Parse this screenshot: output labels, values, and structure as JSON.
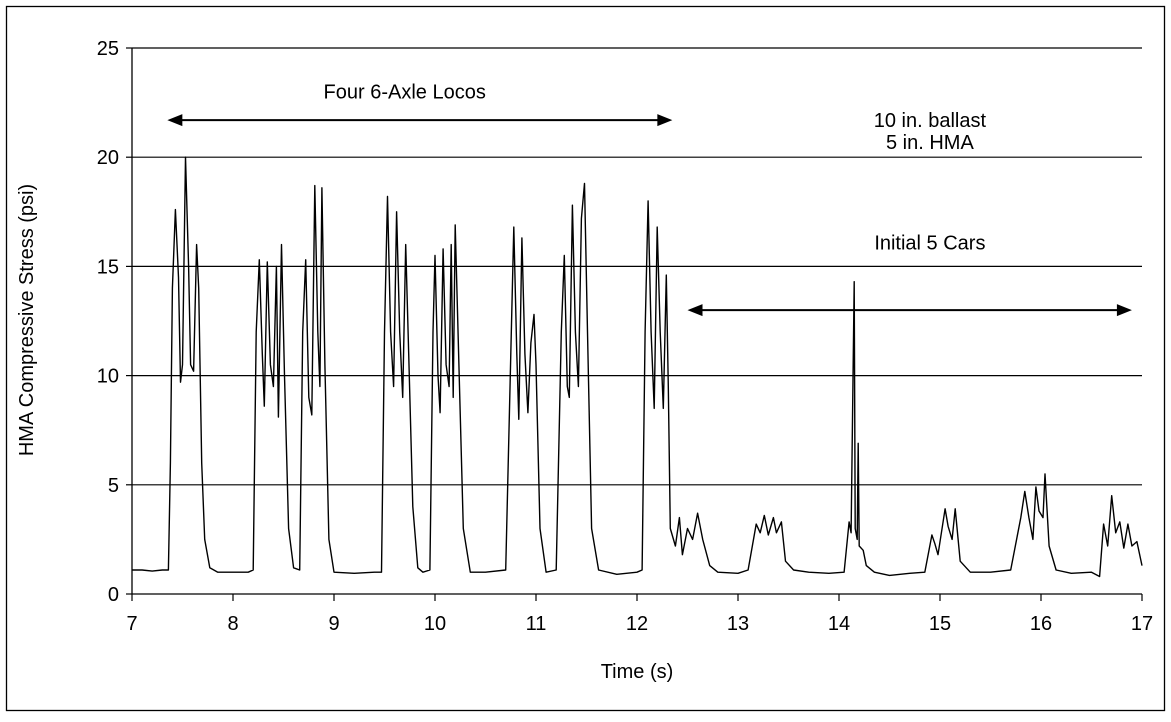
{
  "chart_data": {
    "type": "line",
    "title": "",
    "xlabel": "Time (s)",
    "ylabel": "HMA Compressive Stress (psi)",
    "xlim": [
      7,
      17
    ],
    "ylim": [
      0,
      25
    ],
    "x_ticks": [
      7,
      8,
      9,
      10,
      11,
      12,
      13,
      14,
      15,
      16,
      17
    ],
    "y_ticks": [
      0,
      5,
      10,
      15,
      20,
      25
    ],
    "grid": "horizontal",
    "legend": "none",
    "line_color": "#000000",
    "series": [
      {
        "points": [
          [
            7.0,
            1.1
          ],
          [
            7.1,
            1.1
          ],
          [
            7.2,
            1.05
          ],
          [
            7.3,
            1.1
          ],
          [
            7.36,
            1.1
          ],
          [
            7.38,
            6
          ],
          [
            7.4,
            14
          ],
          [
            7.43,
            17.6
          ],
          [
            7.46,
            14.5
          ],
          [
            7.48,
            9.7
          ],
          [
            7.5,
            10.5
          ],
          [
            7.53,
            20.0
          ],
          [
            7.56,
            15
          ],
          [
            7.58,
            10.5
          ],
          [
            7.61,
            10.2
          ],
          [
            7.64,
            16.0
          ],
          [
            7.66,
            14
          ],
          [
            7.69,
            6
          ],
          [
            7.72,
            2.5
          ],
          [
            7.77,
            1.2
          ],
          [
            7.85,
            1.0
          ],
          [
            8.0,
            1.0
          ],
          [
            8.15,
            1.0
          ],
          [
            8.2,
            1.1
          ],
          [
            8.23,
            12
          ],
          [
            8.26,
            15.3
          ],
          [
            8.29,
            11
          ],
          [
            8.31,
            8.6
          ],
          [
            8.34,
            15.2
          ],
          [
            8.37,
            10.5
          ],
          [
            8.4,
            9.5
          ],
          [
            8.43,
            15
          ],
          [
            8.45,
            8.1
          ],
          [
            8.48,
            16.0
          ],
          [
            8.51,
            10
          ],
          [
            8.55,
            3
          ],
          [
            8.6,
            1.2
          ],
          [
            8.66,
            1.1
          ],
          [
            8.69,
            12
          ],
          [
            8.72,
            15.3
          ],
          [
            8.75,
            9
          ],
          [
            8.78,
            8.2
          ],
          [
            8.81,
            18.7
          ],
          [
            8.84,
            12
          ],
          [
            8.86,
            9.5
          ],
          [
            8.88,
            18.6
          ],
          [
            8.91,
            10.5
          ],
          [
            8.95,
            2.5
          ],
          [
            9.0,
            1.0
          ],
          [
            9.2,
            0.95
          ],
          [
            9.4,
            1.0
          ],
          [
            9.47,
            1.0
          ],
          [
            9.5,
            12
          ],
          [
            9.53,
            18.2
          ],
          [
            9.56,
            12
          ],
          [
            9.59,
            9.5
          ],
          [
            9.62,
            17.5
          ],
          [
            9.65,
            12
          ],
          [
            9.68,
            9.0
          ],
          [
            9.71,
            16.0
          ],
          [
            9.74,
            11
          ],
          [
            9.78,
            4
          ],
          [
            9.83,
            1.2
          ],
          [
            9.88,
            1.0
          ],
          [
            9.95,
            1.1
          ],
          [
            9.98,
            12
          ],
          [
            10.0,
            15.5
          ],
          [
            10.03,
            10
          ],
          [
            10.05,
            8.3
          ],
          [
            10.08,
            15.8
          ],
          [
            10.11,
            10.5
          ],
          [
            10.14,
            9.5
          ],
          [
            10.16,
            16.0
          ],
          [
            10.18,
            9.0
          ],
          [
            10.2,
            16.9
          ],
          [
            10.24,
            10
          ],
          [
            10.28,
            3
          ],
          [
            10.35,
            1.0
          ],
          [
            10.5,
            1.0
          ],
          [
            10.7,
            1.1
          ],
          [
            10.75,
            11
          ],
          [
            10.78,
            16.8
          ],
          [
            10.81,
            11
          ],
          [
            10.83,
            8.0
          ],
          [
            10.86,
            16.3
          ],
          [
            10.89,
            11
          ],
          [
            10.92,
            8.3
          ],
          [
            10.95,
            11.5
          ],
          [
            10.98,
            12.8
          ],
          [
            11.0,
            10.5
          ],
          [
            11.04,
            3
          ],
          [
            11.1,
            1.0
          ],
          [
            11.2,
            1.1
          ],
          [
            11.25,
            12
          ],
          [
            11.28,
            15.5
          ],
          [
            11.31,
            9.5
          ],
          [
            11.33,
            9.0
          ],
          [
            11.36,
            17.8
          ],
          [
            11.39,
            12
          ],
          [
            11.42,
            9.5
          ],
          [
            11.45,
            17.2
          ],
          [
            11.48,
            18.8
          ],
          [
            11.51,
            12
          ],
          [
            11.55,
            3
          ],
          [
            11.62,
            1.1
          ],
          [
            11.8,
            0.9
          ],
          [
            12.0,
            1.0
          ],
          [
            12.05,
            1.1
          ],
          [
            12.08,
            12
          ],
          [
            12.11,
            18.0
          ],
          [
            12.14,
            12
          ],
          [
            12.17,
            8.5
          ],
          [
            12.2,
            16.8
          ],
          [
            12.23,
            12
          ],
          [
            12.26,
            8.5
          ],
          [
            12.29,
            14.6
          ],
          [
            12.31,
            9.5
          ],
          [
            12.33,
            3
          ],
          [
            12.38,
            2.2
          ],
          [
            12.42,
            3.5
          ],
          [
            12.45,
            1.8
          ],
          [
            12.5,
            3.0
          ],
          [
            12.55,
            2.5
          ],
          [
            12.6,
            3.7
          ],
          [
            12.65,
            2.5
          ],
          [
            12.72,
            1.3
          ],
          [
            12.8,
            1.0
          ],
          [
            13.0,
            0.95
          ],
          [
            13.1,
            1.1
          ],
          [
            13.18,
            3.2
          ],
          [
            13.22,
            2.8
          ],
          [
            13.26,
            3.6
          ],
          [
            13.3,
            2.7
          ],
          [
            13.35,
            3.5
          ],
          [
            13.38,
            2.8
          ],
          [
            13.43,
            3.3
          ],
          [
            13.47,
            1.5
          ],
          [
            13.55,
            1.1
          ],
          [
            13.7,
            1.0
          ],
          [
            13.9,
            0.95
          ],
          [
            14.05,
            1.0
          ],
          [
            14.1,
            3.3
          ],
          [
            14.12,
            2.8
          ],
          [
            14.15,
            14.3
          ],
          [
            14.16,
            3
          ],
          [
            14.18,
            2.5
          ],
          [
            14.19,
            6.9
          ],
          [
            14.2,
            2.2
          ],
          [
            14.24,
            2.0
          ],
          [
            14.27,
            1.3
          ],
          [
            14.35,
            1.0
          ],
          [
            14.5,
            0.85
          ],
          [
            14.7,
            0.95
          ],
          [
            14.85,
            1.0
          ],
          [
            14.92,
            2.7
          ],
          [
            14.95,
            2.3
          ],
          [
            14.98,
            1.8
          ],
          [
            15.05,
            3.9
          ],
          [
            15.08,
            3.1
          ],
          [
            15.12,
            2.5
          ],
          [
            15.15,
            3.9
          ],
          [
            15.2,
            1.5
          ],
          [
            15.3,
            1.0
          ],
          [
            15.5,
            1.0
          ],
          [
            15.7,
            1.1
          ],
          [
            15.8,
            3.5
          ],
          [
            15.84,
            4.7
          ],
          [
            15.88,
            3.5
          ],
          [
            15.92,
            2.5
          ],
          [
            15.95,
            4.9
          ],
          [
            15.98,
            3.8
          ],
          [
            16.02,
            3.5
          ],
          [
            16.04,
            5.5
          ],
          [
            16.08,
            2.2
          ],
          [
            16.15,
            1.1
          ],
          [
            16.3,
            0.95
          ],
          [
            16.5,
            1.0
          ],
          [
            16.58,
            0.8
          ],
          [
            16.62,
            3.2
          ],
          [
            16.66,
            2.2
          ],
          [
            16.7,
            4.5
          ],
          [
            16.74,
            2.8
          ],
          [
            16.78,
            3.3
          ],
          [
            16.82,
            2.1
          ],
          [
            16.86,
            3.2
          ],
          [
            16.9,
            2.2
          ],
          [
            16.95,
            2.4
          ],
          [
            17.0,
            1.3
          ]
        ]
      }
    ],
    "annotations": [
      {
        "text": "Four 6-Axle Locos",
        "x": 9.7,
        "y": 23.0
      },
      {
        "text": "10 in. ballast",
        "x": 14.9,
        "y": 21.7
      },
      {
        "text": "5 in. HMA",
        "x": 14.9,
        "y": 20.7
      },
      {
        "text": "Initial 5 Cars",
        "x": 14.9,
        "y": 16.1
      }
    ],
    "arrows": [
      {
        "label": "Four 6-Axle Locos",
        "x_start": 7.35,
        "x_end": 12.35,
        "y": 21.7
      },
      {
        "label": "Initial 5 Cars",
        "x_start": 12.5,
        "x_end": 16.9,
        "y": 13.0
      }
    ]
  }
}
